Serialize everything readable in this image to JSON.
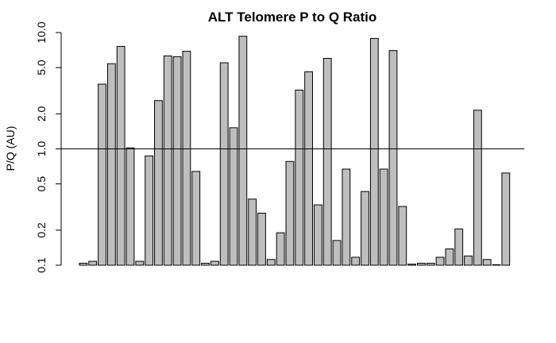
{
  "chart_data": {
    "type": "bar",
    "title": "ALT Telomere P to Q Ratio",
    "xlabel": "",
    "ylabel": "P/Q (AU)",
    "yscale": "log",
    "ylim": [
      0.1,
      10.0
    ],
    "yticks": [
      0.1,
      0.2,
      0.5,
      1.0,
      2.0,
      5.0,
      10.0
    ],
    "ytick_labels": [
      "0.1",
      "0.2",
      "0.5",
      "1.0",
      "2.0",
      "5.0",
      "10.0"
    ],
    "reference_line": 1.0,
    "bar_color": "#bebebe",
    "values": [
      0.104,
      0.108,
      3.6,
      5.4,
      7.6,
      1.02,
      0.108,
      0.87,
      2.6,
      6.3,
      6.2,
      6.9,
      0.64,
      0.104,
      0.108,
      5.5,
      1.52,
      9.3,
      0.37,
      0.28,
      0.112,
      0.19,
      0.78,
      3.2,
      4.6,
      0.33,
      6.0,
      0.163,
      0.67,
      0.117,
      0.43,
      8.9,
      0.67,
      7.0,
      0.32,
      0.102,
      0.104,
      0.104,
      0.117,
      0.138,
      0.205,
      0.12,
      2.15,
      0.112,
      0.101,
      0.62
    ]
  }
}
